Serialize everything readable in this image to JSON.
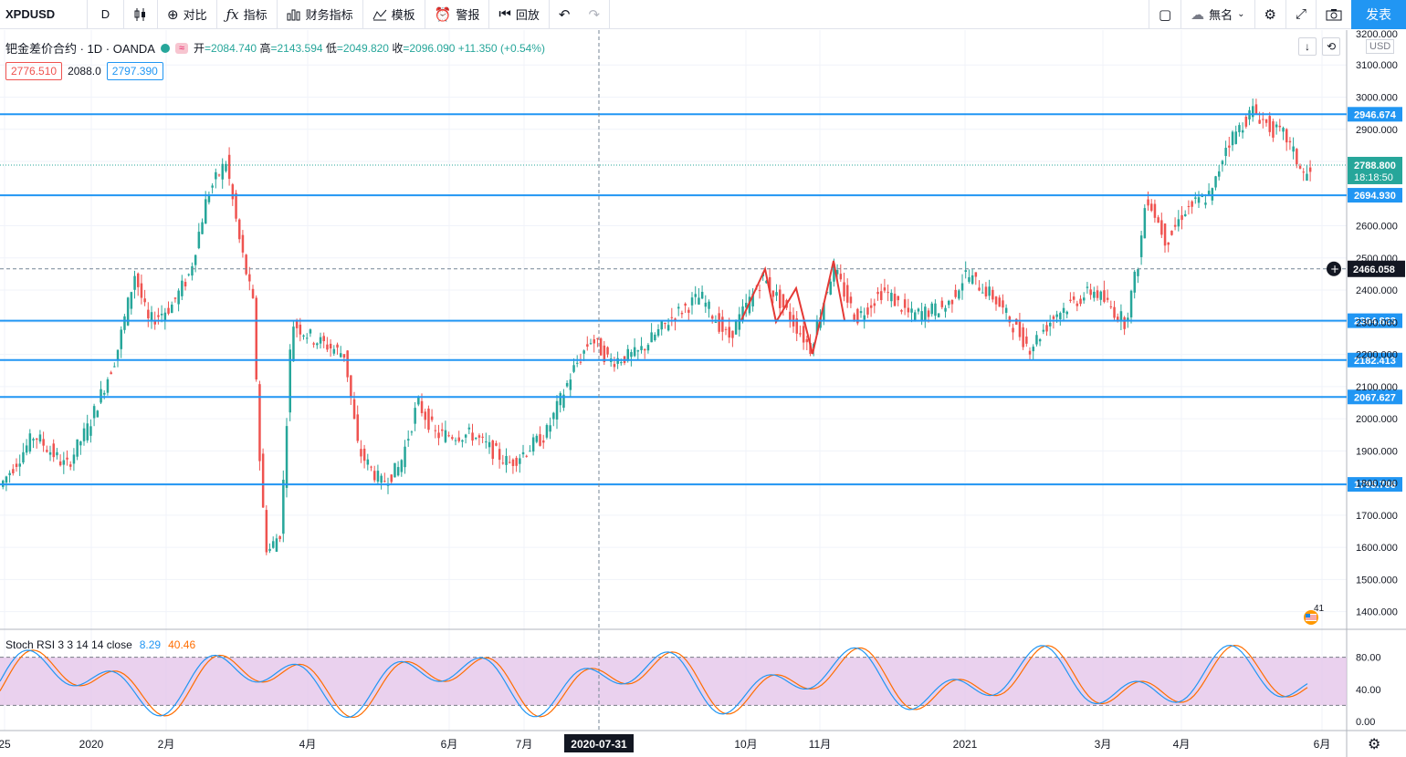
{
  "toolbar": {
    "symbol": "XPDUSD",
    "interval": "D",
    "compare": "对比",
    "indicators": "指标",
    "financials": "财务指标",
    "templates": "模板",
    "alerts": "警报",
    "replay": "回放",
    "layout_name": "無名",
    "publish": "发表"
  },
  "legend": {
    "title": "钯金差价合约 · 1D · OANDA",
    "wave_badge": "≈",
    "open_label": "开",
    "open": "2084.740",
    "high_label": "高",
    "high": "2143.594",
    "low_label": "低",
    "low": "2049.820",
    "close_label": "收",
    "close": "2096.090",
    "change": "+11.350",
    "change_pct": "(+0.54%)",
    "bid": "2776.510",
    "spread": "2088.0",
    "ask": "2797.390"
  },
  "price_axis": {
    "currency": "USD",
    "top_tick": "3200.000",
    "ticks": [
      "3100.000",
      "3000.000",
      "2900.000",
      "2800.000",
      "2600.000",
      "2500.000",
      "2400.000",
      "2300.000",
      "2200.000",
      "2100.000",
      "2000.000",
      "1900.000",
      "1800.000",
      "1700.000",
      "1600.000",
      "1500.000",
      "1400.000"
    ],
    "current_price": "2788.800",
    "countdown": "18:18:50",
    "crosshair_price": "2466.058"
  },
  "horizontal_levels": [
    "2946.674",
    "2694.930",
    "2304.823",
    "2182.413",
    "2067.627",
    "1795.786"
  ],
  "time_axis": {
    "labels": [
      "25",
      "2020",
      "2月",
      "4月",
      "6月",
      "7月",
      "10月",
      "11月",
      "2021",
      "3月",
      "4月",
      "6月"
    ],
    "crosshair_date": "2020-07-31"
  },
  "stoch": {
    "label": "Stoch RSI 3 3 14 14 close",
    "k": "8.29",
    "d": "40.46",
    "ticks": [
      "80.00",
      "40.00",
      "0.00"
    ]
  },
  "badge_number": "41",
  "colors": {
    "up": "#26a69a",
    "down": "#ef5350",
    "level": "#2196f3",
    "stoch_k": "#2196f3",
    "stoch_d": "#ff6d00",
    "stoch_band": "#e1bee7"
  }
}
